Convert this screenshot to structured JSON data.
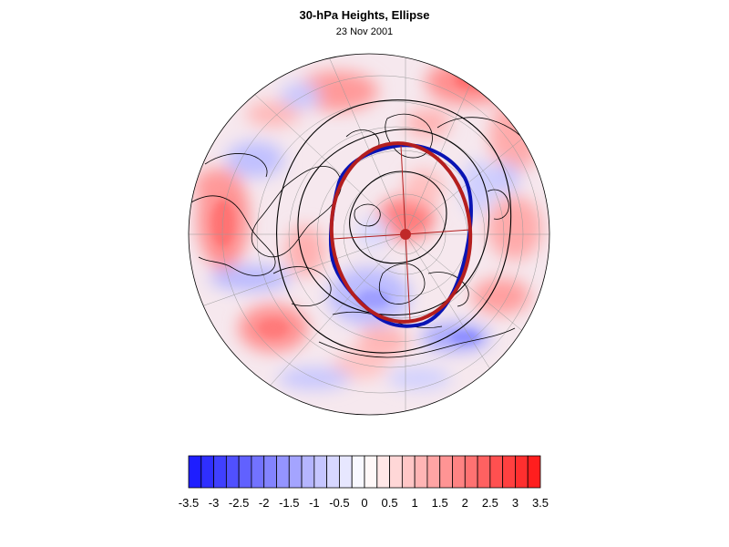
{
  "title": "30-hPa Heights, Ellipse",
  "subtitle": "23 Nov 2001",
  "colorbar": {
    "levels": [
      -3.5,
      -3.25,
      -3,
      -2.75,
      -2.5,
      -2.25,
      -2,
      -1.75,
      -1.5,
      -1.25,
      -1,
      -0.75,
      -0.5,
      -0.25,
      0,
      0.25,
      0.5,
      0.75,
      1,
      1.25,
      1.5,
      1.75,
      2,
      2.25,
      2.5,
      2.75,
      3,
      3.25,
      3.5
    ],
    "tick_labels": [
      "-3.5",
      "-3",
      "-2.5",
      "-2",
      "-1.5",
      "-1",
      "-0.5",
      "0",
      "0.5",
      "1",
      "1.5",
      "2",
      "2.5",
      "3",
      "3.5"
    ],
    "min_color": "#1e1eff",
    "mid_color": "#ffffff",
    "max_color": "#ff1e1e"
  },
  "map": {
    "projection": "orthographic-north-polar",
    "vortex_contour_color": "#0a14b4",
    "ellipse_color": "#b41e1e",
    "coastline_color": "#000000",
    "height_contour_color": "#000000"
  }
}
